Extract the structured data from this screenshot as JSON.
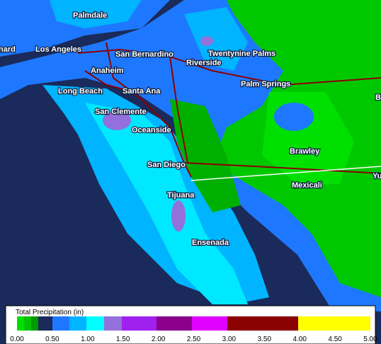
{
  "map": {
    "labels": [
      "nard",
      "Palmdale",
      "Los Angeles",
      "San Bernardino",
      "Twentynine Palms",
      "Anaheim",
      "Riverside",
      "Long Beach",
      "Santa Ana",
      "Palm Springs",
      "Bl",
      "San Clemente",
      "Oceanside",
      "Brawley",
      "San Diego",
      "Yu",
      "Mexicali",
      "Tijuana",
      "Ensenada"
    ]
  },
  "legend": {
    "title": "Total Precipitation (in)",
    "ticks": [
      "0.00",
      "0.50",
      "1.00",
      "1.50",
      "2.00",
      "2.50",
      "3.00",
      "3.50",
      "4.00",
      "4.50",
      "5.00"
    ]
  }
}
